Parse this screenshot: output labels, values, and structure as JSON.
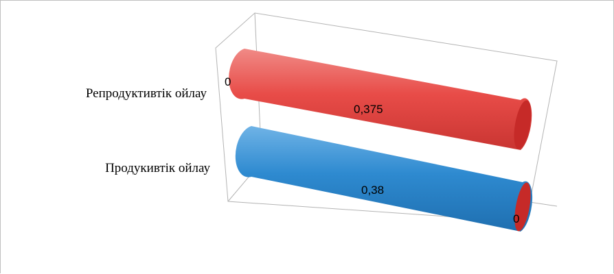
{
  "chart_data": {
    "type": "bar",
    "orientation": "horizontal",
    "style": "3d-cylinder",
    "categories": [
      "Репродуктивтік ойлау",
      "Продукивтік ойлау"
    ],
    "series": [
      {
        "color": "#e84c48",
        "values": [
          0,
          0
        ]
      },
      {
        "color": "#e84c48",
        "values": [
          0.375,
          0.38
        ]
      }
    ],
    "bar_colors": [
      "#e84c48",
      "#2e8ad0"
    ],
    "end_cap_color": "#c62a28",
    "data_labels": {
      "start": [
        "0",
        "0"
      ],
      "value": [
        "0,375",
        "0,38"
      ]
    },
    "xlim": [
      0,
      0.38
    ],
    "grid": false,
    "legend": "none"
  }
}
